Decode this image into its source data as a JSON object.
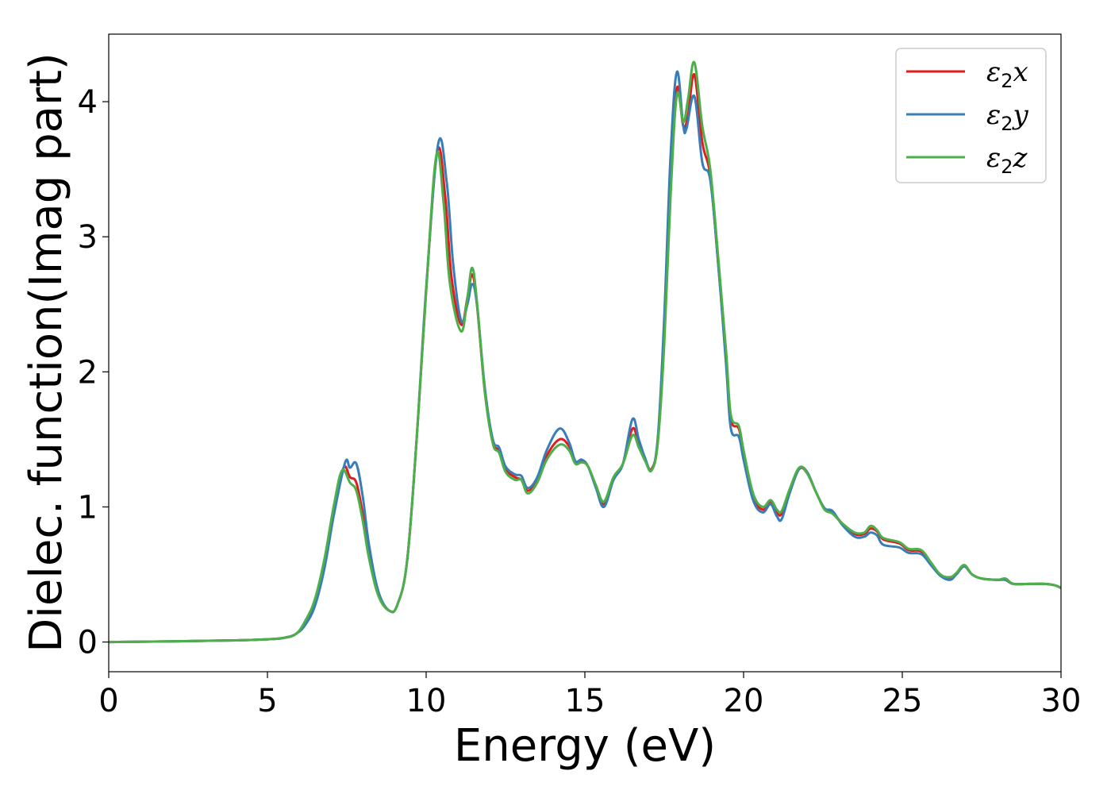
{
  "chart_data": {
    "type": "line",
    "title": "",
    "xlabel": "Energy (eV)",
    "ylabel": "Dielec. function(Imag part)",
    "xlim": [
      0,
      30
    ],
    "ylim": [
      -0.22,
      4.5
    ],
    "xticks": [
      0,
      5,
      10,
      15,
      20,
      25,
      30
    ],
    "xtick_labels": [
      "0",
      "5",
      "10",
      "15",
      "20",
      "25",
      "30"
    ],
    "yticks": [
      0,
      1,
      2,
      3,
      4
    ],
    "ytick_labels": [
      "0",
      "1",
      "2",
      "3",
      "4"
    ],
    "grid": false,
    "legend_position": "top-right",
    "series": [
      {
        "name": "ε2x",
        "symbol": "ε",
        "sub": "2",
        "suffix": "x",
        "color": "#e41a1c",
        "points": [
          [
            0,
            0
          ],
          [
            2,
            0.005
          ],
          [
            4,
            0.012
          ],
          [
            5,
            0.02
          ],
          [
            5.5,
            0.03
          ],
          [
            5.9,
            0.06
          ],
          [
            6.2,
            0.15
          ],
          [
            6.5,
            0.3
          ],
          [
            6.8,
            0.6
          ],
          [
            7.1,
            1.0
          ],
          [
            7.4,
            1.29
          ],
          [
            7.6,
            1.22
          ],
          [
            7.8,
            1.18
          ],
          [
            8.0,
            0.95
          ],
          [
            8.2,
            0.65
          ],
          [
            8.5,
            0.35
          ],
          [
            8.85,
            0.23
          ],
          [
            9.1,
            0.28
          ],
          [
            9.4,
            0.6
          ],
          [
            9.7,
            1.5
          ],
          [
            10.0,
            2.6
          ],
          [
            10.35,
            3.63
          ],
          [
            10.6,
            3.3
          ],
          [
            10.8,
            2.7
          ],
          [
            11.1,
            2.35
          ],
          [
            11.3,
            2.55
          ],
          [
            11.45,
            2.72
          ],
          [
            11.6,
            2.5
          ],
          [
            11.85,
            1.85
          ],
          [
            12.1,
            1.48
          ],
          [
            12.3,
            1.42
          ],
          [
            12.5,
            1.28
          ],
          [
            12.8,
            1.22
          ],
          [
            13.0,
            1.2
          ],
          [
            13.2,
            1.12
          ],
          [
            13.5,
            1.2
          ],
          [
            13.8,
            1.38
          ],
          [
            14.2,
            1.5
          ],
          [
            14.5,
            1.45
          ],
          [
            14.7,
            1.33
          ],
          [
            14.9,
            1.34
          ],
          [
            15.1,
            1.3
          ],
          [
            15.35,
            1.15
          ],
          [
            15.6,
            1.02
          ],
          [
            15.9,
            1.2
          ],
          [
            16.2,
            1.32
          ],
          [
            16.5,
            1.58
          ],
          [
            16.7,
            1.46
          ],
          [
            16.9,
            1.35
          ],
          [
            17.1,
            1.28
          ],
          [
            17.3,
            1.5
          ],
          [
            17.5,
            2.3
          ],
          [
            17.7,
            3.4
          ],
          [
            17.9,
            4.1
          ],
          [
            18.1,
            3.82
          ],
          [
            18.25,
            3.9
          ],
          [
            18.45,
            4.2
          ],
          [
            18.7,
            3.7
          ],
          [
            18.95,
            3.45
          ],
          [
            19.2,
            2.8
          ],
          [
            19.45,
            2.1
          ],
          [
            19.6,
            1.65
          ],
          [
            19.85,
            1.58
          ],
          [
            20.0,
            1.4
          ],
          [
            20.3,
            1.08
          ],
          [
            20.6,
            0.98
          ],
          [
            20.85,
            1.04
          ],
          [
            21.05,
            0.96
          ],
          [
            21.2,
            0.95
          ],
          [
            21.45,
            1.12
          ],
          [
            21.75,
            1.28
          ],
          [
            22.0,
            1.25
          ],
          [
            22.3,
            1.1
          ],
          [
            22.55,
            0.99
          ],
          [
            22.8,
            0.96
          ],
          [
            23.1,
            0.88
          ],
          [
            23.5,
            0.8
          ],
          [
            23.8,
            0.8
          ],
          [
            24.0,
            0.84
          ],
          [
            24.2,
            0.82
          ],
          [
            24.4,
            0.76
          ],
          [
            24.9,
            0.73
          ],
          [
            25.2,
            0.68
          ],
          [
            25.6,
            0.67
          ],
          [
            25.9,
            0.58
          ],
          [
            26.2,
            0.5
          ],
          [
            26.5,
            0.47
          ],
          [
            26.7,
            0.5
          ],
          [
            26.95,
            0.56
          ],
          [
            27.2,
            0.5
          ],
          [
            27.5,
            0.47
          ],
          [
            28.0,
            0.46
          ],
          [
            28.25,
            0.46
          ],
          [
            28.5,
            0.43
          ],
          [
            29.0,
            0.43
          ],
          [
            29.5,
            0.43
          ],
          [
            29.8,
            0.42
          ],
          [
            30,
            0.4
          ]
        ]
      },
      {
        "name": "ε2y",
        "symbol": "ε",
        "sub": "2",
        "suffix": "y",
        "color": "#377eb8",
        "points": [
          [
            0,
            0
          ],
          [
            2,
            0.005
          ],
          [
            4,
            0.012
          ],
          [
            5,
            0.02
          ],
          [
            5.5,
            0.03
          ],
          [
            5.9,
            0.06
          ],
          [
            6.2,
            0.13
          ],
          [
            6.5,
            0.27
          ],
          [
            6.8,
            0.55
          ],
          [
            7.1,
            0.95
          ],
          [
            7.45,
            1.33
          ],
          [
            7.6,
            1.29
          ],
          [
            7.8,
            1.32
          ],
          [
            8.0,
            1.08
          ],
          [
            8.2,
            0.72
          ],
          [
            8.5,
            0.37
          ],
          [
            8.85,
            0.23
          ],
          [
            9.1,
            0.28
          ],
          [
            9.4,
            0.6
          ],
          [
            9.7,
            1.5
          ],
          [
            10.0,
            2.62
          ],
          [
            10.38,
            3.69
          ],
          [
            10.65,
            3.4
          ],
          [
            10.85,
            2.8
          ],
          [
            11.1,
            2.38
          ],
          [
            11.3,
            2.5
          ],
          [
            11.45,
            2.65
          ],
          [
            11.6,
            2.5
          ],
          [
            11.85,
            1.88
          ],
          [
            12.1,
            1.5
          ],
          [
            12.3,
            1.44
          ],
          [
            12.5,
            1.3
          ],
          [
            12.8,
            1.24
          ],
          [
            13.0,
            1.23
          ],
          [
            13.2,
            1.14
          ],
          [
            13.5,
            1.22
          ],
          [
            13.8,
            1.42
          ],
          [
            14.2,
            1.58
          ],
          [
            14.5,
            1.48
          ],
          [
            14.7,
            1.34
          ],
          [
            14.9,
            1.35
          ],
          [
            15.1,
            1.3
          ],
          [
            15.35,
            1.14
          ],
          [
            15.6,
            1.0
          ],
          [
            15.9,
            1.2
          ],
          [
            16.2,
            1.32
          ],
          [
            16.5,
            1.65
          ],
          [
            16.7,
            1.5
          ],
          [
            16.9,
            1.36
          ],
          [
            17.1,
            1.27
          ],
          [
            17.3,
            1.52
          ],
          [
            17.5,
            2.4
          ],
          [
            17.7,
            3.6
          ],
          [
            17.9,
            4.22
          ],
          [
            18.1,
            3.82
          ],
          [
            18.2,
            3.8
          ],
          [
            18.45,
            4.04
          ],
          [
            18.7,
            3.55
          ],
          [
            18.95,
            3.42
          ],
          [
            19.2,
            2.8
          ],
          [
            19.45,
            2.05
          ],
          [
            19.6,
            1.58
          ],
          [
            19.85,
            1.52
          ],
          [
            20.0,
            1.35
          ],
          [
            20.3,
            1.05
          ],
          [
            20.6,
            0.96
          ],
          [
            20.85,
            1.02
          ],
          [
            21.05,
            0.93
          ],
          [
            21.2,
            0.91
          ],
          [
            21.45,
            1.1
          ],
          [
            21.75,
            1.28
          ],
          [
            22.0,
            1.26
          ],
          [
            22.3,
            1.1
          ],
          [
            22.55,
            0.99
          ],
          [
            22.8,
            0.97
          ],
          [
            23.1,
            0.87
          ],
          [
            23.5,
            0.78
          ],
          [
            23.8,
            0.78
          ],
          [
            24.0,
            0.81
          ],
          [
            24.2,
            0.79
          ],
          [
            24.4,
            0.72
          ],
          [
            24.9,
            0.7
          ],
          [
            25.2,
            0.66
          ],
          [
            25.6,
            0.65
          ],
          [
            25.9,
            0.57
          ],
          [
            26.2,
            0.49
          ],
          [
            26.5,
            0.46
          ],
          [
            26.7,
            0.5
          ],
          [
            26.95,
            0.56
          ],
          [
            27.2,
            0.5
          ],
          [
            27.5,
            0.47
          ],
          [
            28.0,
            0.46
          ],
          [
            28.25,
            0.46
          ],
          [
            28.5,
            0.43
          ],
          [
            29.0,
            0.43
          ],
          [
            29.5,
            0.43
          ],
          [
            29.8,
            0.42
          ],
          [
            30,
            0.4
          ]
        ]
      },
      {
        "name": "ε2z",
        "symbol": "ε",
        "sub": "2",
        "suffix": "z",
        "color": "#4daf4a",
        "points": [
          [
            0,
            0
          ],
          [
            2,
            0.005
          ],
          [
            4,
            0.012
          ],
          [
            5,
            0.02
          ],
          [
            5.5,
            0.03
          ],
          [
            5.9,
            0.06
          ],
          [
            6.2,
            0.16
          ],
          [
            6.5,
            0.32
          ],
          [
            6.8,
            0.62
          ],
          [
            7.1,
            1.02
          ],
          [
            7.35,
            1.27
          ],
          [
            7.6,
            1.18
          ],
          [
            7.8,
            1.12
          ],
          [
            8.0,
            0.9
          ],
          [
            8.2,
            0.62
          ],
          [
            8.5,
            0.34
          ],
          [
            8.85,
            0.23
          ],
          [
            9.1,
            0.28
          ],
          [
            9.4,
            0.6
          ],
          [
            9.7,
            1.5
          ],
          [
            10.0,
            2.6
          ],
          [
            10.32,
            3.6
          ],
          [
            10.55,
            3.25
          ],
          [
            10.75,
            2.65
          ],
          [
            11.1,
            2.3
          ],
          [
            11.3,
            2.55
          ],
          [
            11.45,
            2.77
          ],
          [
            11.6,
            2.52
          ],
          [
            11.85,
            1.85
          ],
          [
            12.1,
            1.47
          ],
          [
            12.3,
            1.4
          ],
          [
            12.5,
            1.26
          ],
          [
            12.8,
            1.2
          ],
          [
            13.0,
            1.2
          ],
          [
            13.2,
            1.1
          ],
          [
            13.5,
            1.18
          ],
          [
            13.8,
            1.35
          ],
          [
            14.2,
            1.46
          ],
          [
            14.5,
            1.42
          ],
          [
            14.7,
            1.32
          ],
          [
            14.9,
            1.33
          ],
          [
            15.1,
            1.3
          ],
          [
            15.35,
            1.16
          ],
          [
            15.6,
            1.04
          ],
          [
            15.9,
            1.22
          ],
          [
            16.2,
            1.32
          ],
          [
            16.5,
            1.53
          ],
          [
            16.7,
            1.44
          ],
          [
            16.9,
            1.34
          ],
          [
            17.1,
            1.27
          ],
          [
            17.3,
            1.48
          ],
          [
            17.5,
            2.2
          ],
          [
            17.7,
            3.3
          ],
          [
            17.9,
            4.05
          ],
          [
            18.1,
            3.85
          ],
          [
            18.25,
            4.02
          ],
          [
            18.45,
            4.29
          ],
          [
            18.7,
            3.82
          ],
          [
            18.95,
            3.5
          ],
          [
            19.2,
            2.85
          ],
          [
            19.45,
            2.15
          ],
          [
            19.6,
            1.68
          ],
          [
            19.85,
            1.6
          ],
          [
            20.0,
            1.42
          ],
          [
            20.3,
            1.1
          ],
          [
            20.6,
            1.0
          ],
          [
            20.85,
            1.05
          ],
          [
            21.05,
            0.98
          ],
          [
            21.2,
            0.97
          ],
          [
            21.45,
            1.13
          ],
          [
            21.75,
            1.29
          ],
          [
            22.0,
            1.25
          ],
          [
            22.3,
            1.1
          ],
          [
            22.55,
            0.98
          ],
          [
            22.8,
            0.95
          ],
          [
            23.1,
            0.88
          ],
          [
            23.5,
            0.81
          ],
          [
            23.8,
            0.81
          ],
          [
            24.0,
            0.86
          ],
          [
            24.2,
            0.83
          ],
          [
            24.4,
            0.77
          ],
          [
            24.9,
            0.74
          ],
          [
            25.2,
            0.69
          ],
          [
            25.6,
            0.68
          ],
          [
            25.9,
            0.59
          ],
          [
            26.2,
            0.5
          ],
          [
            26.5,
            0.48
          ],
          [
            26.7,
            0.51
          ],
          [
            26.95,
            0.57
          ],
          [
            27.2,
            0.5
          ],
          [
            27.5,
            0.47
          ],
          [
            28.0,
            0.46
          ],
          [
            28.25,
            0.47
          ],
          [
            28.5,
            0.43
          ],
          [
            29.0,
            0.43
          ],
          [
            29.5,
            0.43
          ],
          [
            29.8,
            0.42
          ],
          [
            30,
            0.4
          ]
        ]
      }
    ]
  }
}
